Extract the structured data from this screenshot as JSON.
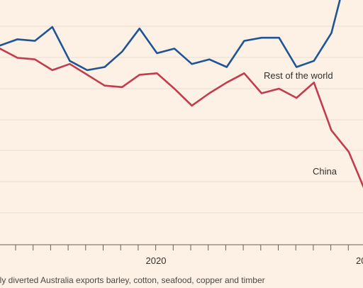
{
  "caption": "lly diverted Australia exports barley, cotton, seafood, copper and timber",
  "chart_data": {
    "type": "line",
    "x_tick_labels": [
      "2020",
      "20"
    ],
    "colors": {
      "rest_of_world": "#1f5497",
      "china": "#c43b4d",
      "background": "#fdf1e5"
    },
    "grid": true,
    "series": [
      {
        "name": "Rest of the world",
        "values": [
          5.4,
          5.6,
          5.55,
          6.0,
          4.9,
          4.6,
          4.7,
          5.2,
          5.95,
          5.15,
          5.3,
          4.8,
          4.95,
          4.7,
          5.55,
          5.65,
          5.65,
          4.7,
          4.9,
          5.8,
          8.0,
          8.5
        ]
      },
      {
        "name": "China",
        "values": [
          5.3,
          5.0,
          4.95,
          4.6,
          4.8,
          4.45,
          4.1,
          4.05,
          4.45,
          4.5,
          4.0,
          3.45,
          3.85,
          4.2,
          4.5,
          3.85,
          4.0,
          3.7,
          4.2,
          2.65,
          1.95,
          0.6
        ]
      }
    ],
    "series_labels": [
      "Rest of the world",
      "China"
    ]
  }
}
